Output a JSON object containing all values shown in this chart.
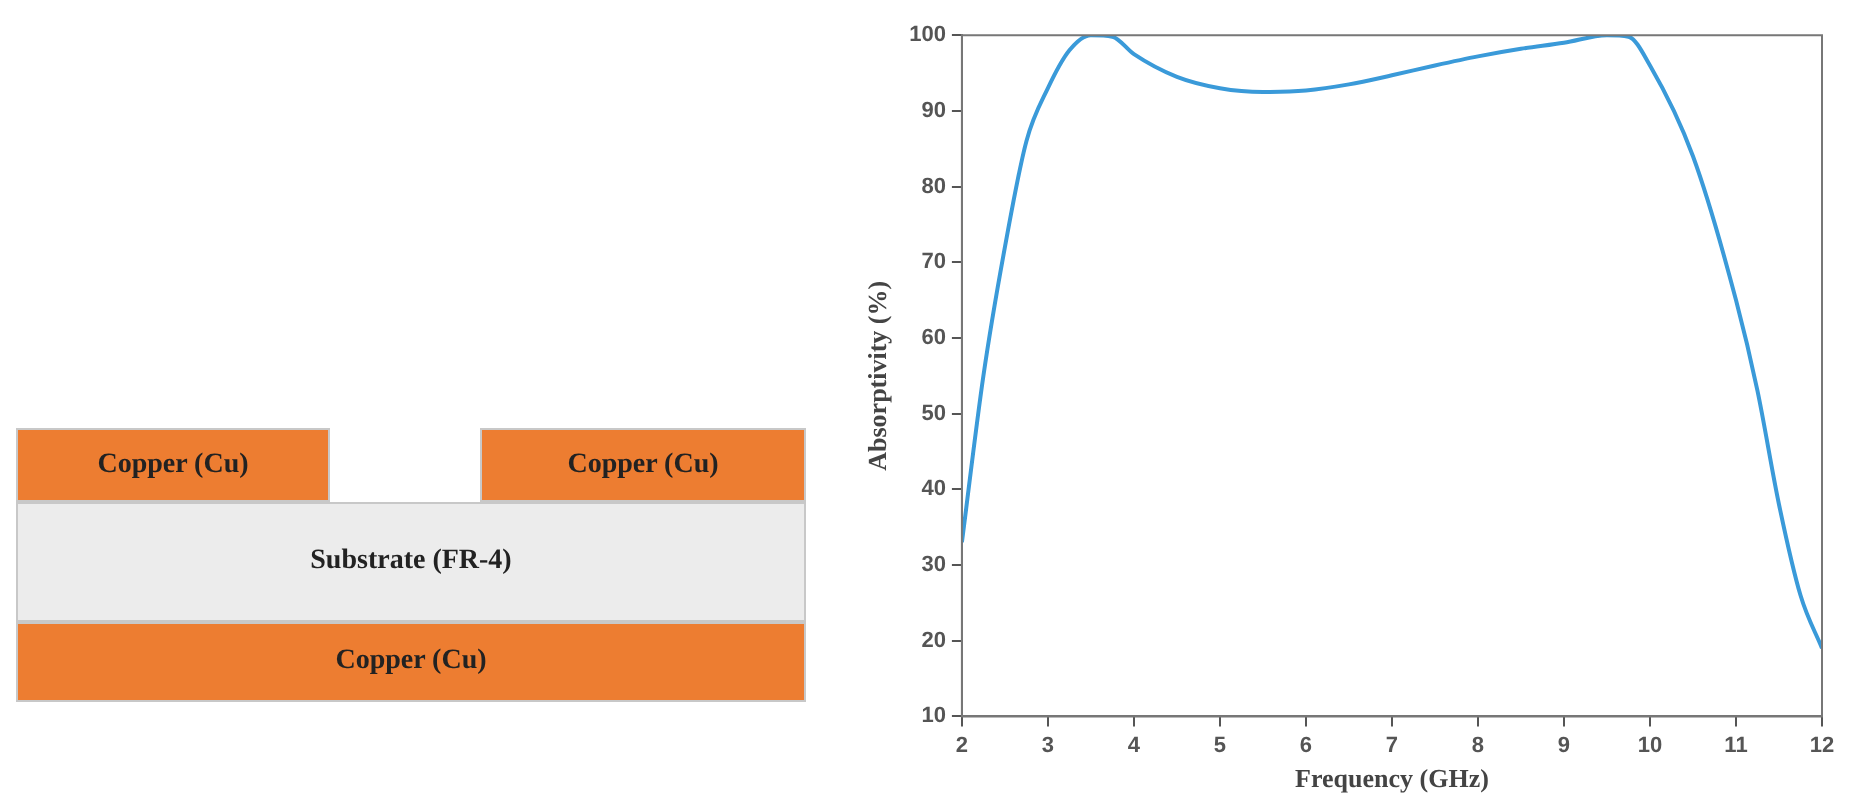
{
  "chart_data": [
    {
      "type": "other",
      "annotations": [
        "Copper (Cu)",
        "Copper (Cu)",
        "Substrate (FR-4)",
        "Copper (Cu)"
      ]
    },
    {
      "type": "line",
      "xlabel": "Frequency (GHz)",
      "ylabel": "Absorptivity (%)",
      "x": [
        2,
        2.25,
        2.5,
        2.75,
        3,
        3.25,
        3.5,
        3.75,
        4,
        4.5,
        5,
        5.5,
        6,
        6.5,
        7,
        7.5,
        8,
        8.5,
        9,
        9.5,
        9.75,
        10,
        10.5,
        11,
        11.25,
        11.5,
        11.75,
        12
      ],
      "series": [
        {
          "color": "#3a9ad9",
          "values": [
            33,
            55,
            72,
            86,
            93,
            98,
            100,
            99.8,
            97.5,
            94.5,
            93,
            92.5,
            92.7,
            93.5,
            94.7,
            96,
            97.2,
            98.2,
            99,
            100,
            99.8,
            96,
            84,
            65,
            53,
            38,
            26,
            19
          ]
        }
      ],
      "xlim": [
        2,
        12
      ],
      "xticks": [
        2,
        3,
        4,
        5,
        6,
        7,
        8,
        9,
        10,
        11,
        12
      ],
      "ylim": [
        10,
        100
      ],
      "yticks": [
        10,
        20,
        30,
        40,
        50,
        60,
        70,
        80,
        90,
        100
      ],
      "grid": false,
      "legend": false,
      "marker": "none",
      "line_style": "solid"
    }
  ]
}
